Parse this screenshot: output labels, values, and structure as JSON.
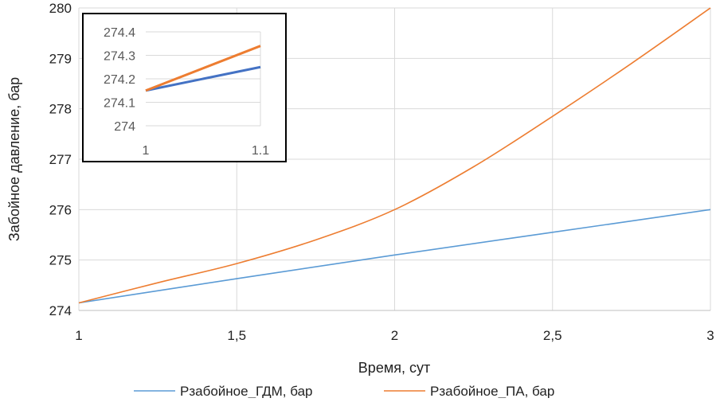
{
  "chart_data": [
    {
      "type": "line",
      "xlabel": "Время, сут",
      "ylabel": "Забойное давление, бар",
      "xlim": [
        1,
        3
      ],
      "ylim": [
        274,
        280
      ],
      "x_ticks": [
        1,
        1.5,
        2,
        2.5,
        3
      ],
      "x_tick_labels": [
        "1",
        "1,5",
        "2",
        "2,5",
        "3"
      ],
      "y_ticks": [
        274,
        275,
        276,
        277,
        278,
        279,
        280
      ],
      "y_tick_labels": [
        "274",
        "275",
        "276",
        "277",
        "278",
        "279",
        "280"
      ],
      "grid": true,
      "legend_position": "bottom",
      "series": [
        {
          "name": "Рзабойное_ГДМ, бар",
          "color": "#5B9BD5",
          "x": [
            1,
            1.5,
            2,
            2.5,
            3
          ],
          "y": [
            274.15,
            274.63,
            275.1,
            275.55,
            276.0
          ]
        },
        {
          "name": "Рзабойное_ПА, бар",
          "color": "#ED7D31",
          "x": [
            1,
            1.25,
            1.5,
            1.75,
            2,
            2.25,
            2.5,
            2.75,
            3
          ],
          "y": [
            274.15,
            274.55,
            274.93,
            275.4,
            276.0,
            276.85,
            277.85,
            278.9,
            280.0
          ]
        }
      ]
    },
    {
      "type": "line",
      "xlim": [
        1,
        1.1
      ],
      "ylim": [
        274,
        274.4
      ],
      "x_ticks": [
        1,
        1.1
      ],
      "x_tick_labels": [
        "1",
        "1.1"
      ],
      "y_ticks": [
        274,
        274.1,
        274.2,
        274.3,
        274.4
      ],
      "y_tick_labels": [
        "274",
        "274.1",
        "274.2",
        "274.3",
        "274.4"
      ],
      "grid": true,
      "legend_position": "none",
      "series": [
        {
          "color": "#4472C4",
          "x": [
            1,
            1.1
          ],
          "y": [
            274.15,
            274.25
          ]
        },
        {
          "color": "#ED7D31",
          "x": [
            1,
            1.1
          ],
          "y": [
            274.15,
            274.34
          ]
        }
      ]
    }
  ]
}
